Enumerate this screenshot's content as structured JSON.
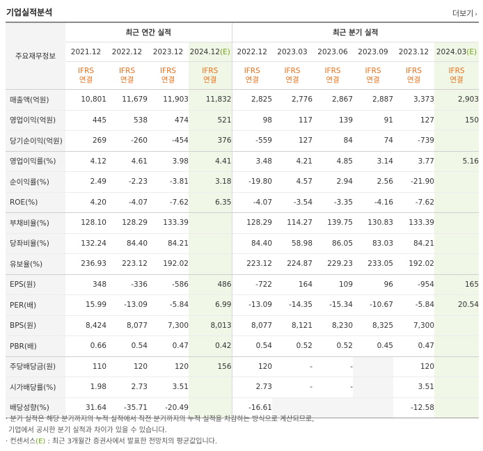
{
  "title": "기업실적분석",
  "more_label": "더보기",
  "row_header": "주요재무정보",
  "annual_header": "최근 연간 실적",
  "quarter_header": "최근 분기 실적",
  "periods": [
    "2021.12",
    "2022.12",
    "2023.12",
    "2024.12(E)",
    "2022.12",
    "2023.03",
    "2023.06",
    "2023.09",
    "2023.12",
    "2024.03(E)"
  ],
  "basis_line1": "IFRS",
  "basis_line2": "연결",
  "rows": [
    {
      "label": "매출액(억원)",
      "values": [
        "10,801",
        "11,679",
        "11,903",
        "11,832",
        "2,825",
        "2,776",
        "2,867",
        "2,887",
        "3,373",
        "2,903"
      ]
    },
    {
      "label": "영업이익(억원)",
      "values": [
        "445",
        "538",
        "474",
        "521",
        "98",
        "117",
        "139",
        "91",
        "127",
        "150"
      ]
    },
    {
      "label": "당기순이익(억원)",
      "values": [
        "269",
        "-260",
        "-454",
        "376",
        "-559",
        "127",
        "84",
        "74",
        "-739",
        ""
      ]
    },
    {
      "label": "영업이익률(%)",
      "values": [
        "4.12",
        "4.61",
        "3.98",
        "4.41",
        "3.48",
        "4.21",
        "4.85",
        "3.14",
        "3.77",
        "5.16"
      ]
    },
    {
      "label": "순이익률(%)",
      "values": [
        "2.49",
        "-2.23",
        "-3.81",
        "3.18",
        "-19.80",
        "4.57",
        "2.94",
        "2.56",
        "-21.90",
        ""
      ]
    },
    {
      "label": "ROE(%)",
      "values": [
        "4.20",
        "-4.07",
        "-7.62",
        "6.35",
        "-4.07",
        "-3.54",
        "-3.35",
        "-4.16",
        "-7.62",
        ""
      ]
    },
    {
      "label": "부채비율(%)",
      "values": [
        "128.10",
        "128.29",
        "133.39",
        "",
        "128.29",
        "114.27",
        "139.75",
        "130.83",
        "133.39",
        ""
      ]
    },
    {
      "label": "당좌비율(%)",
      "values": [
        "132.24",
        "84.40",
        "84.21",
        "",
        "84.40",
        "58.98",
        "86.05",
        "83.03",
        "84.21",
        ""
      ]
    },
    {
      "label": "유보율(%)",
      "values": [
        "236.93",
        "223.12",
        "192.02",
        "",
        "223.12",
        "224.87",
        "229.23",
        "233.05",
        "192.02",
        ""
      ]
    },
    {
      "label": "EPS(원)",
      "values": [
        "348",
        "-336",
        "-586",
        "486",
        "-722",
        "164",
        "109",
        "96",
        "-954",
        "165"
      ]
    },
    {
      "label": "PER(배)",
      "values": [
        "15.99",
        "-13.09",
        "-5.84",
        "6.99",
        "-13.09",
        "-14.35",
        "-15.34",
        "-10.67",
        "-5.84",
        "20.54"
      ]
    },
    {
      "label": "BPS(원)",
      "values": [
        "8,424",
        "8,077",
        "7,300",
        "8,013",
        "8,077",
        "8,121",
        "8,230",
        "8,325",
        "7,300",
        ""
      ]
    },
    {
      "label": "PBR(배)",
      "values": [
        "0.66",
        "0.54",
        "0.47",
        "0.42",
        "0.54",
        "0.52",
        "0.52",
        "0.45",
        "0.47",
        ""
      ]
    },
    {
      "label": "주당배당금(원)",
      "values": [
        "110",
        "120",
        "120",
        "156",
        "120",
        "-",
        "-",
        "",
        "120",
        ""
      ]
    },
    {
      "label": "시가배당률(%)",
      "values": [
        "1.98",
        "2.73",
        "3.51",
        "",
        "2.73",
        "-",
        "-",
        "",
        "3.51",
        ""
      ]
    },
    {
      "label": "배당성향(%)",
      "values": [
        "31.64",
        "-35.71",
        "-20.49",
        "",
        "-16.61",
        "",
        "",
        "",
        "-12.58",
        ""
      ]
    }
  ],
  "notes": [
    "· 분기 실적은 해당 분기까지의 누적 실적에서 직전 분기까지의 누적 실적을 차감하는 방식으로 계산되므로,",
    "  기업에서 공시한 분기 실적과 차이가 있을 수 있습니다.",
    "· 컨센서스(E) : 최근 3개월간 증권사에서 발표한 전망치의 평균값입니다."
  ],
  "colors": {
    "negative": "#e02020",
    "basis": "#e8701a",
    "estimate_bg": "#f0f7e6",
    "estimate_mark": "#6fa315"
  }
}
